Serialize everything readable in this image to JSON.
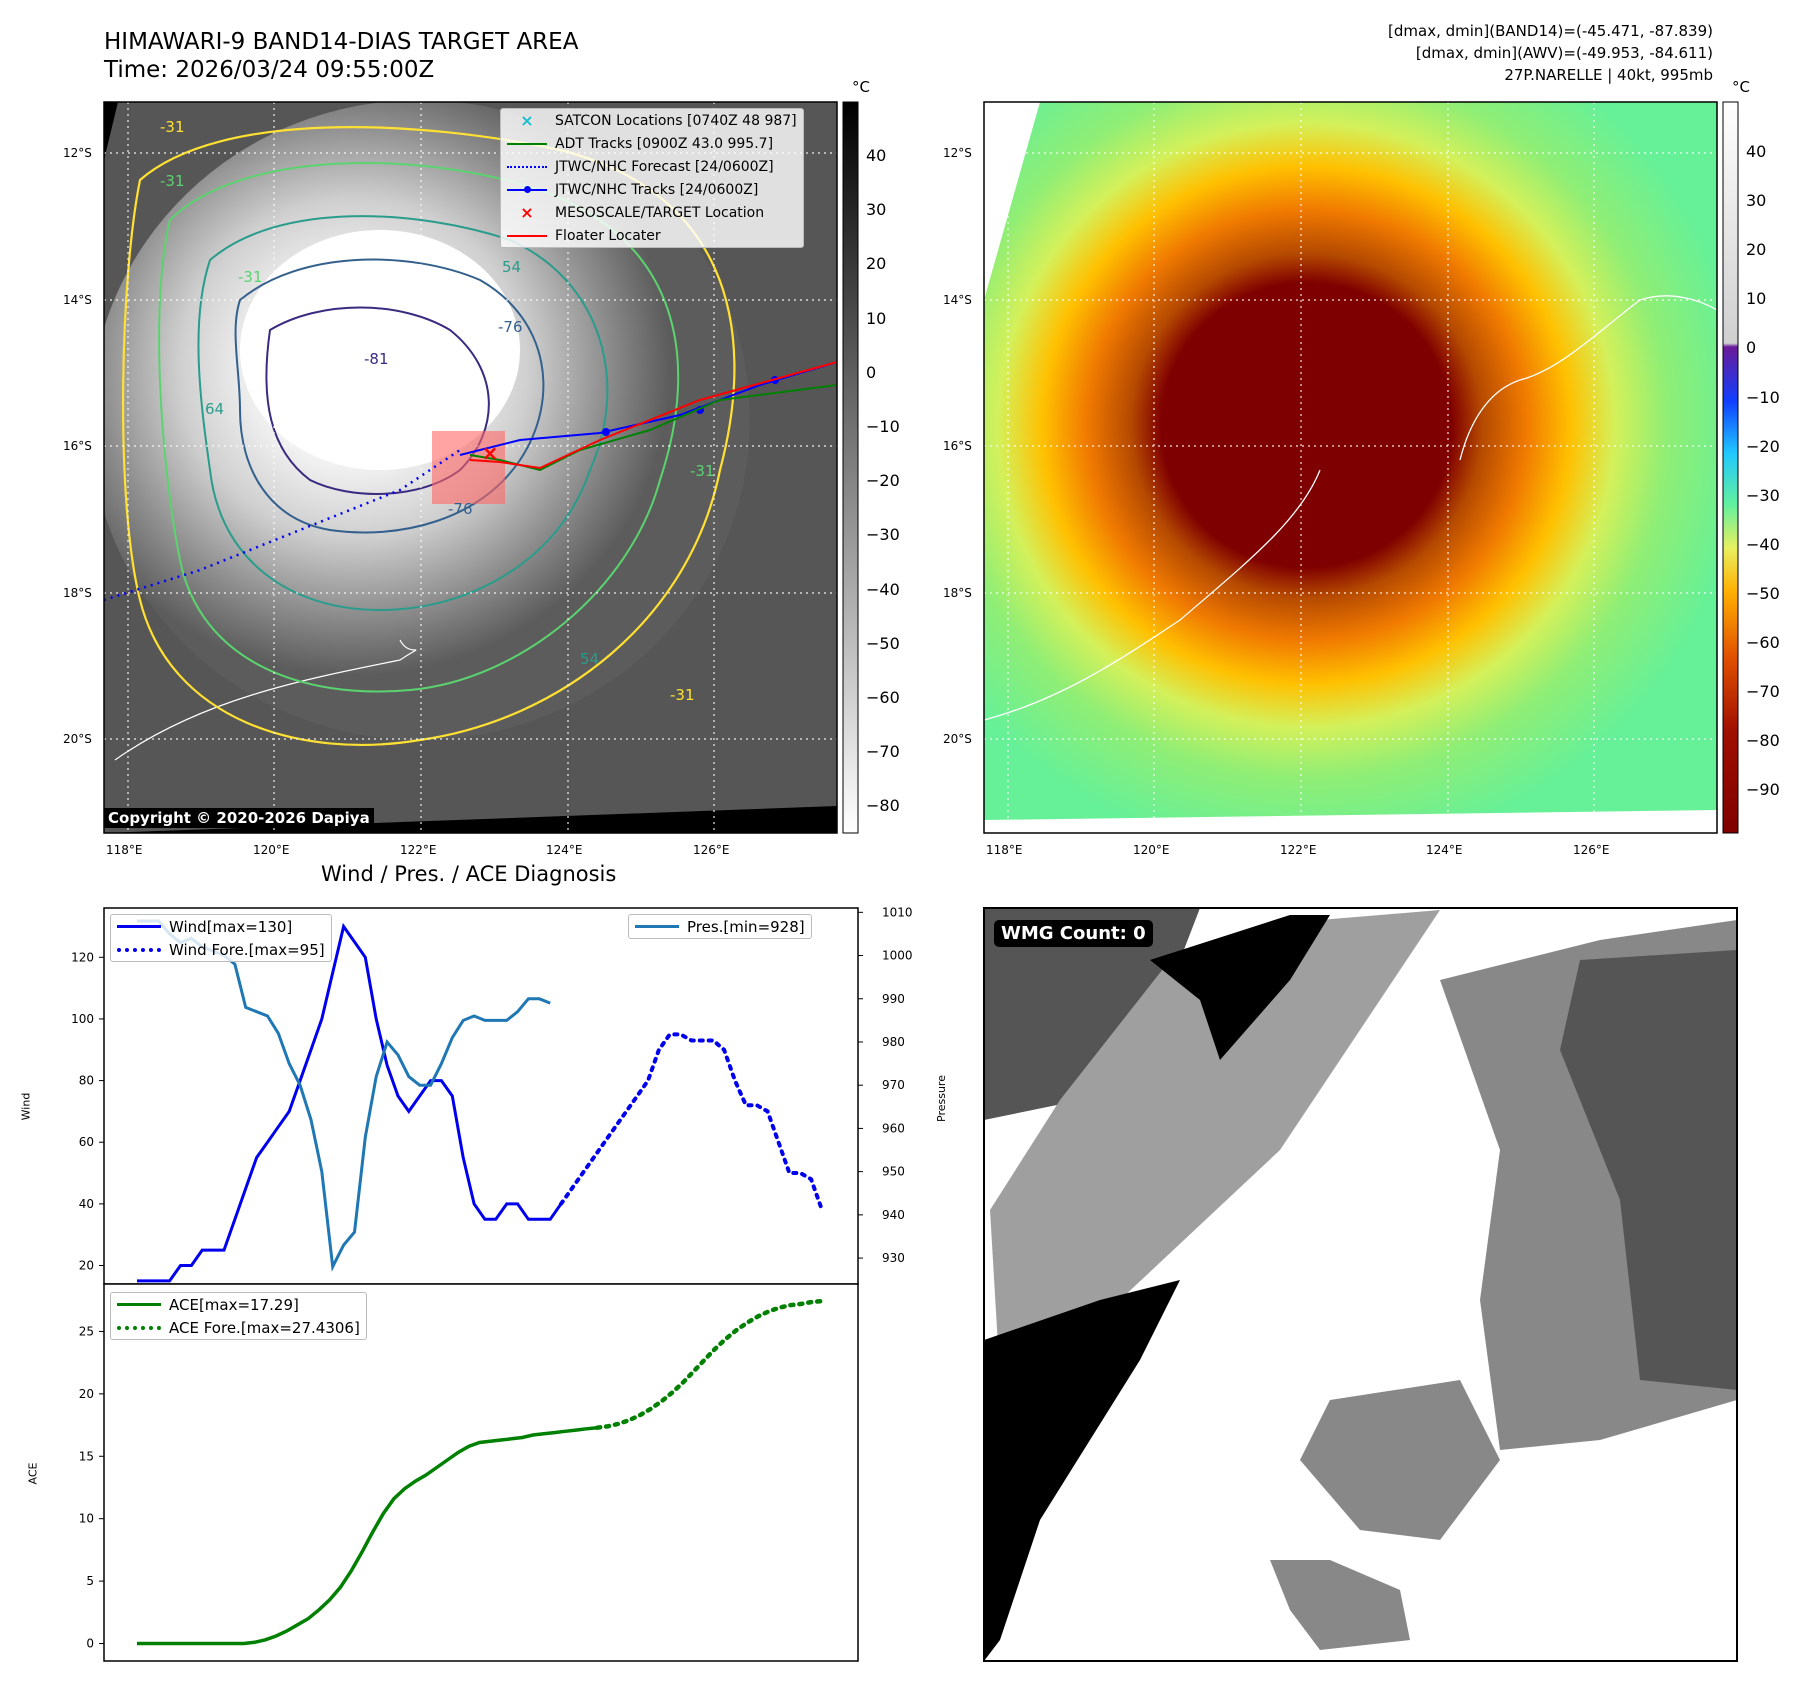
{
  "header": {
    "title_line1": "HIMAWARI-9 BAND14-DIAS TARGET AREA",
    "title_line2": "Time: 2026/03/24 09:55:00Z",
    "stats_line1": "[dmax, dmin](BAND14)=(-45.471, -87.839)",
    "stats_line2": "[dmax, dmin](AWV)=(-49.953, -84.611)",
    "stats_line3": "27P.NARELLE | 40kt, 995mb"
  },
  "copyright": "Copyright © 2020-2026 Dapiya",
  "wmg_count": "WMG Count: 0",
  "map": {
    "lon_ticks": [
      "118°E",
      "120°E",
      "122°E",
      "124°E",
      "126°E"
    ],
    "lat_ticks": [
      "12°S",
      "14°S",
      "16°S",
      "18°S",
      "20°S"
    ],
    "contour_labels": [
      "-31",
      "-31",
      "-31",
      "-31",
      "64",
      "54",
      "-76",
      "-81",
      "-76",
      "54",
      "-31"
    ]
  },
  "legend_tracks": [
    {
      "label": "SATCON Locations [0740Z 48 987]",
      "color": "#17becf",
      "style": "x"
    },
    {
      "label": "ADT Tracks [0900Z 43.0 995.7]",
      "color": "#008000",
      "style": "solid"
    },
    {
      "label": "JTWC/NHC Forecast [24/0600Z]",
      "color": "#0000ff",
      "style": "dotted"
    },
    {
      "label": "JTWC/NHC Tracks [24/0600Z]",
      "color": "#0000ff",
      "style": "solid-dot"
    },
    {
      "label": "MESOSCALE/TARGET Location",
      "color": "#ff0000",
      "style": "x"
    },
    {
      "label": "Floater Locater",
      "color": "#ff0000",
      "style": "solid"
    }
  ],
  "colorbar_gray": {
    "unit": "°C",
    "ticks": [
      "40",
      "30",
      "20",
      "10",
      "0",
      "−10",
      "−20",
      "−30",
      "−40",
      "−50",
      "−60",
      "−70",
      "−80"
    ]
  },
  "colorbar_color": {
    "unit": "°C",
    "ticks": [
      "40",
      "30",
      "20",
      "10",
      "0",
      "−10",
      "−20",
      "−30",
      "−40",
      "−50",
      "−60",
      "−70",
      "−80",
      "−90"
    ]
  },
  "chart_data": [
    {
      "type": "line",
      "title": "Wind / Pres. / ACE Diagnosis",
      "ylabel": "Wind",
      "y2label": "Pressure",
      "ylim": [
        14,
        136
      ],
      "y2lim": [
        924,
        1011
      ],
      "yticks": [
        20,
        40,
        60,
        80,
        100,
        120
      ],
      "y2ticks": [
        930,
        940,
        950,
        960,
        970,
        980,
        990,
        1000,
        1010
      ],
      "legend_left": [
        "Wind[max=130]",
        "Wind Fore.[max=95]"
      ],
      "legend_right": [
        "Pres.[min=928]"
      ],
      "series": [
        {
          "name": "Wind[max=130]",
          "color": "#0000ee",
          "dashed": false,
          "values": [
            15,
            15,
            15,
            15,
            20,
            20,
            25,
            25,
            25,
            35,
            45,
            55,
            60,
            65,
            70,
            80,
            90,
            100,
            115,
            130,
            125,
            120,
            100,
            85,
            75,
            70,
            75,
            80,
            80,
            75,
            55,
            40,
            35,
            35,
            40,
            40,
            35,
            35,
            35,
            40
          ]
        },
        {
          "name": "Wind Fore.[max=95]",
          "color": "#0000ee",
          "dashed": true,
          "values": [
            40,
            45,
            50,
            55,
            60,
            65,
            70,
            75,
            80,
            90,
            95,
            95,
            93,
            93,
            93,
            90,
            80,
            72,
            72,
            70,
            60,
            50,
            50,
            48,
            38
          ]
        },
        {
          "name": "Pres.[min=928]",
          "color": "#1f77b4",
          "dashed": false,
          "axis": "right",
          "values": [
            1008,
            1008,
            1008,
            1005,
            1003,
            1004,
            1002,
            1001,
            1000,
            998,
            988,
            987,
            986,
            982,
            975,
            970,
            962,
            950,
            928,
            933,
            936,
            958,
            972,
            980,
            977,
            972,
            970,
            970,
            975,
            981,
            985,
            986,
            985,
            985,
            985,
            987,
            990,
            990,
            989
          ]
        }
      ]
    },
    {
      "type": "line",
      "ylabel": "ACE",
      "ylim": [
        -1.4,
        28.8
      ],
      "yticks": [
        0,
        5,
        10,
        15,
        20,
        25
      ],
      "legend": [
        "ACE[max=17.29]",
        "ACE Fore.[max=27.4306]"
      ],
      "series": [
        {
          "name": "ACE[max=17.29]",
          "color": "#008000",
          "dashed": false,
          "values": [
            0,
            0,
            0,
            0,
            0,
            0,
            0,
            0,
            0,
            0,
            0,
            0.1,
            0.3,
            0.6,
            1.0,
            1.5,
            2.0,
            2.7,
            3.5,
            4.5,
            5.8,
            7.3,
            8.9,
            10.4,
            11.6,
            12.4,
            13.0,
            13.5,
            14.1,
            14.7,
            15.3,
            15.8,
            16.1,
            16.2,
            16.3,
            16.4,
            16.5,
            16.7,
            16.8,
            16.9,
            17.0,
            17.1,
            17.2,
            17.29
          ]
        },
        {
          "name": "ACE Fore.[max=27.4306]",
          "color": "#008000",
          "dashed": true,
          "values": [
            17.29,
            17.4,
            17.6,
            17.9,
            18.3,
            18.8,
            19.4,
            20.1,
            20.9,
            21.8,
            22.7,
            23.6,
            24.4,
            25.1,
            25.7,
            26.2,
            26.6,
            26.9,
            27.1,
            27.2,
            27.35,
            27.43
          ]
        }
      ]
    }
  ]
}
